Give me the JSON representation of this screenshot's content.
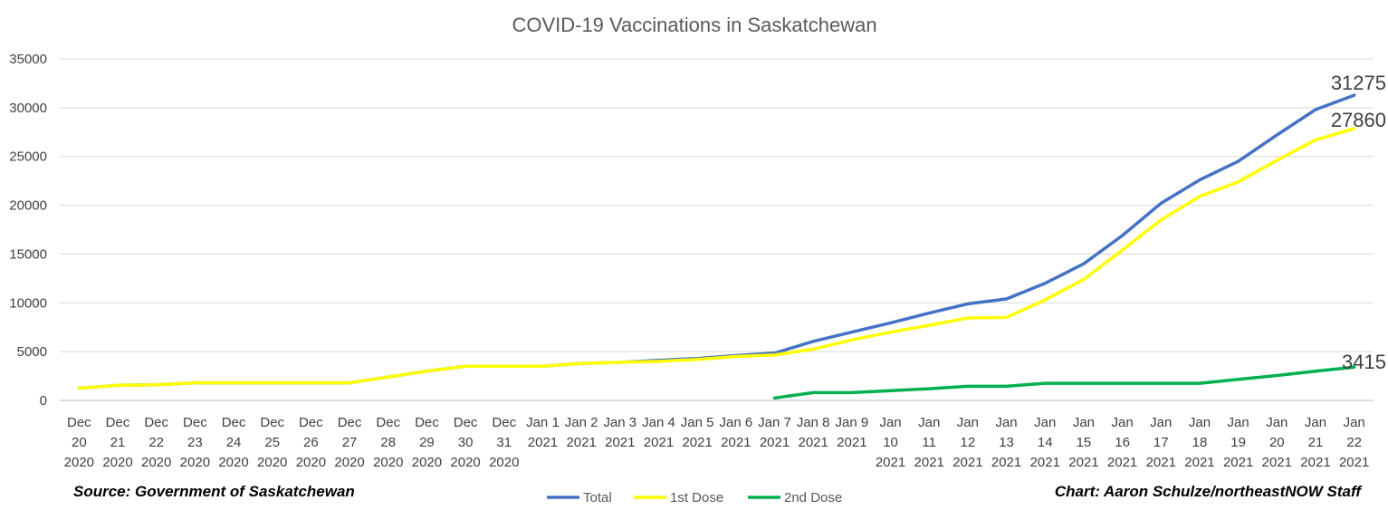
{
  "chart_data": {
    "type": "line",
    "title": "COVID-19 Vaccinations in Saskatchewan",
    "categories": [
      [
        "Dec",
        "20",
        "2020"
      ],
      [
        "Dec",
        "21",
        "2020"
      ],
      [
        "Dec",
        "22",
        "2020"
      ],
      [
        "Dec",
        "23",
        "2020"
      ],
      [
        "Dec",
        "24",
        "2020"
      ],
      [
        "Dec",
        "25",
        "2020"
      ],
      [
        "Dec",
        "26",
        "2020"
      ],
      [
        "Dec",
        "27",
        "2020"
      ],
      [
        "Dec",
        "28",
        "2020"
      ],
      [
        "Dec",
        "29",
        "2020"
      ],
      [
        "Dec",
        "30",
        "2020"
      ],
      [
        "Dec",
        "31",
        "2020"
      ],
      [
        "Jan 1",
        "2021"
      ],
      [
        "Jan 2",
        "2021"
      ],
      [
        "Jan 3",
        "2021"
      ],
      [
        "Jan 4",
        "2021"
      ],
      [
        "Jan 5",
        "2021"
      ],
      [
        "Jan 6",
        "2021"
      ],
      [
        "Jan 7",
        "2021"
      ],
      [
        "Jan 8",
        "2021"
      ],
      [
        "Jan 9",
        "2021"
      ],
      [
        "Jan",
        "10",
        "2021"
      ],
      [
        "Jan",
        "11",
        "2021"
      ],
      [
        "Jan",
        "12",
        "2021"
      ],
      [
        "Jan",
        "13",
        "2021"
      ],
      [
        "Jan",
        "14",
        "2021"
      ],
      [
        "Jan",
        "15",
        "2021"
      ],
      [
        "Jan",
        "16",
        "2021"
      ],
      [
        "Jan",
        "17",
        "2021"
      ],
      [
        "Jan",
        "18",
        "2021"
      ],
      [
        "Jan",
        "19",
        "2021"
      ],
      [
        "Jan",
        "20",
        "2021"
      ],
      [
        "Jan",
        "21",
        "2021"
      ],
      [
        "Jan",
        "22",
        "2021"
      ]
    ],
    "ylim": [
      0,
      35000
    ],
    "yticks": [
      0,
      5000,
      10000,
      15000,
      20000,
      25000,
      30000,
      35000
    ],
    "grid": true,
    "legend_position": "bottom",
    "series": [
      {
        "name": "Total",
        "color": "#4472C4",
        "values": [
          1250,
          1550,
          1600,
          1800,
          1800,
          1800,
          1800,
          1800,
          2400,
          3000,
          3500,
          3500,
          3500,
          3800,
          3900,
          4100,
          4300,
          4600,
          4850,
          6050,
          7000,
          7950,
          8950,
          9900,
          10400,
          12000,
          14000,
          16900,
          20200,
          22600,
          24500,
          27200,
          29800,
          31275
        ]
      },
      {
        "name": "1st Dose",
        "color": "#FFFF00",
        "values": [
          1250,
          1550,
          1600,
          1800,
          1800,
          1800,
          1800,
          1800,
          2400,
          3000,
          3500,
          3500,
          3500,
          3800,
          3900,
          4000,
          4200,
          4500,
          4650,
          5250,
          6200,
          7000,
          7700,
          8450,
          8500,
          10300,
          12400,
          15400,
          18500,
          20900,
          22400,
          24600,
          26700,
          27860
        ]
      },
      {
        "name": "2nd Dose",
        "color": "#00B050",
        "values": [
          null,
          null,
          null,
          null,
          null,
          null,
          null,
          null,
          null,
          null,
          null,
          null,
          null,
          null,
          null,
          null,
          null,
          null,
          250,
          800,
          800,
          1000,
          1200,
          1450,
          1450,
          1750,
          1750,
          1750,
          1750,
          1750,
          2150,
          2550,
          3000,
          3415
        ]
      }
    ],
    "end_labels": [
      "31275",
      "27860",
      "3415"
    ]
  },
  "footer": {
    "source": "Source: Government of Saskatchewan",
    "credit": "Chart: Aaron Schulze/northeastNOW Staff"
  },
  "colors": {
    "grid": "#D9D9D9",
    "axis": "#BFBFBF"
  }
}
